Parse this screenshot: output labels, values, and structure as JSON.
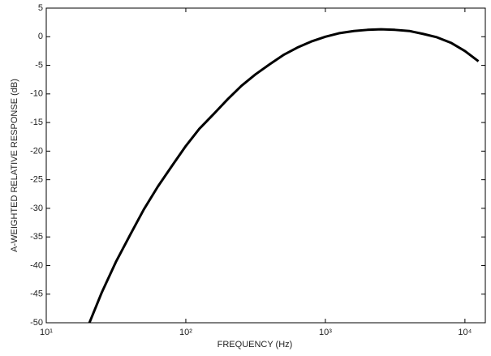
{
  "chart_data": {
    "type": "line",
    "xlabel": "FREQUENCY (Hz)",
    "ylabel": "A-WEIGHTED RELATIVE RESPONSE (dB)",
    "x": [
      20,
      25,
      31.5,
      40,
      50,
      63,
      80,
      100,
      125,
      160,
      200,
      250,
      315,
      400,
      500,
      630,
      800,
      1000,
      1250,
      1600,
      2000,
      2500,
      3150,
      4000,
      5000,
      6300,
      8000,
      10000,
      12500
    ],
    "values": [
      -50.5,
      -44.7,
      -39.4,
      -34.6,
      -30.2,
      -26.2,
      -22.5,
      -19.1,
      -16.1,
      -13.4,
      -10.9,
      -8.6,
      -6.6,
      -4.8,
      -3.2,
      -1.9,
      -0.8,
      0,
      0.6,
      1.0,
      1.2,
      1.3,
      1.2,
      1.0,
      0.5,
      -0.1,
      -1.1,
      -2.5,
      -4.3
    ],
    "color": "#000000",
    "xscale": "log",
    "xlim": [
      10,
      14000
    ],
    "xticks": [
      {
        "value": 10,
        "label": "10¹"
      },
      {
        "value": 100,
        "label": "10²"
      },
      {
        "value": 1000,
        "label": "10³"
      },
      {
        "value": 10000,
        "label": "10⁴"
      }
    ],
    "ylim": [
      -50,
      5
    ],
    "yticks": [
      5,
      0,
      -5,
      -10,
      -15,
      -20,
      -25,
      -30,
      -35,
      -40,
      -45,
      -50
    ]
  }
}
